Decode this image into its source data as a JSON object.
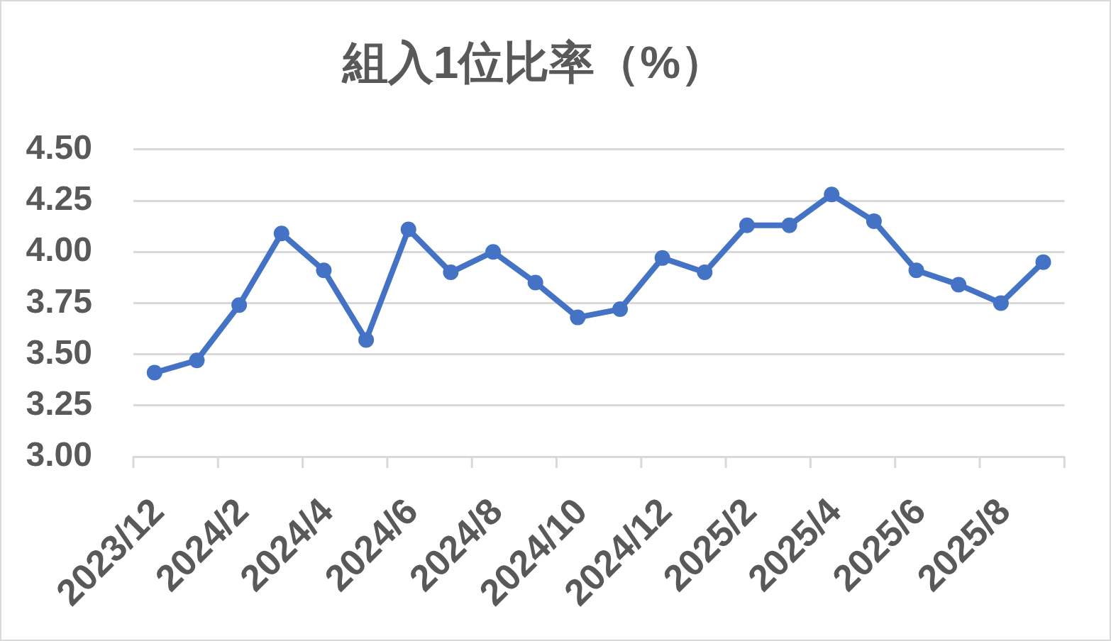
{
  "chart_data": {
    "type": "line",
    "title": "組入1位比率（%）",
    "categories": [
      "2023/12",
      null,
      "2024/2",
      null,
      "2024/4",
      null,
      "2024/6",
      null,
      "2024/8",
      null,
      "2024/10",
      null,
      "2024/12",
      null,
      "2025/2",
      null,
      "2025/4",
      null,
      "2025/6",
      null,
      "2025/8",
      null
    ],
    "values": [
      3.41,
      3.47,
      3.74,
      4.09,
      3.91,
      3.57,
      4.11,
      3.9,
      4.0,
      3.85,
      3.68,
      3.72,
      3.97,
      3.9,
      4.13,
      4.13,
      4.28,
      4.15,
      3.91,
      3.84,
      3.75,
      3.95
    ],
    "color": "#4472c4",
    "ylim": [
      3,
      4.5
    ],
    "yticks": [
      {
        "value": 3,
        "label": "3.00"
      },
      {
        "value": 3.25,
        "label": "3.25"
      },
      {
        "value": 3.5,
        "label": "3.50"
      },
      {
        "value": 3.75,
        "label": "3.75"
      },
      {
        "value": 4,
        "label": "4.00"
      },
      {
        "value": 4.25,
        "label": "4.25"
      },
      {
        "value": 4.5,
        "label": "4.50"
      }
    ],
    "grid": "y",
    "legend": false,
    "marker": "circle",
    "line_style": "solid"
  }
}
